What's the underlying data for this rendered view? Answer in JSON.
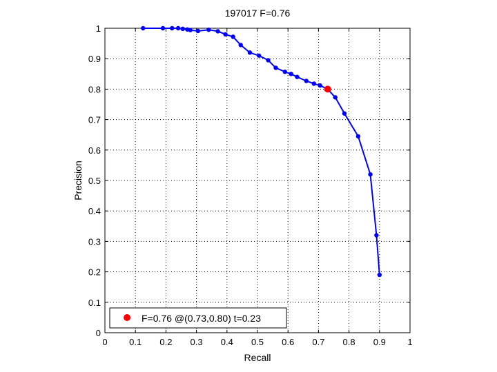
{
  "chart_data": {
    "type": "line",
    "title": "197017 F=0.76",
    "xlabel": "Recall",
    "ylabel": "Precision",
    "xlim": [
      0,
      1
    ],
    "ylim": [
      0,
      1
    ],
    "xticks": [
      "0",
      "0.1",
      "0.2",
      "0.3",
      "0.4",
      "0.5",
      "0.6",
      "0.7",
      "0.8",
      "0.9",
      "1"
    ],
    "yticks": [
      "0",
      "0.1",
      "0.2",
      "0.3",
      "0.4",
      "0.5",
      "0.6",
      "0.7",
      "0.8",
      "0.9",
      "1"
    ],
    "grid": true,
    "series": [
      {
        "color": "#0000ff",
        "x": [
          0.125,
          0.19,
          0.22,
          0.24,
          0.255,
          0.27,
          0.28,
          0.305,
          0.34,
          0.37,
          0.395,
          0.42,
          0.445,
          0.475,
          0.505,
          0.535,
          0.56,
          0.59,
          0.61,
          0.63,
          0.66,
          0.685,
          0.705,
          0.73,
          0.755,
          0.785,
          0.83,
          0.87,
          0.89,
          0.9
        ],
        "y": [
          1.0,
          1.0,
          1.0,
          1.0,
          0.998,
          0.996,
          0.994,
          0.991,
          0.995,
          0.99,
          0.98,
          0.972,
          0.945,
          0.92,
          0.91,
          0.895,
          0.87,
          0.857,
          0.85,
          0.84,
          0.827,
          0.818,
          0.812,
          0.8,
          0.773,
          0.72,
          0.645,
          0.52,
          0.32,
          0.19
        ]
      }
    ],
    "highlight": {
      "x": 0.73,
      "y": 0.8,
      "color": "#ff0000"
    },
    "legend": {
      "position": "bottom-left",
      "text": "F=0.76 @(0.73,0.80) t=0.23"
    }
  }
}
